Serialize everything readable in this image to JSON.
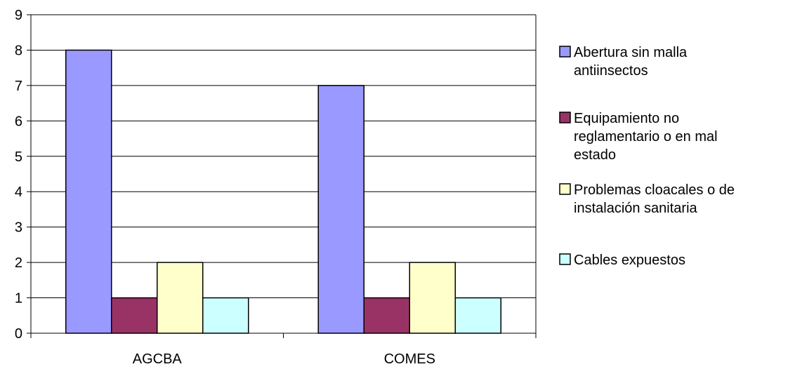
{
  "chart_data": {
    "type": "bar",
    "title": "",
    "xlabel": "",
    "ylabel": "",
    "categories": [
      "AGCBA",
      "COMES"
    ],
    "ylim": [
      0,
      9
    ],
    "yticks": [
      "0",
      "1",
      "2",
      "3",
      "4",
      "5",
      "6",
      "7",
      "8",
      "9"
    ],
    "grid": true,
    "legend_position": "right",
    "series": [
      {
        "name": "Abertura sin malla antiinsectos",
        "legend_lines": [
          "Abertura sin malla",
          "antiinsectos"
        ],
        "color": "#9999ff",
        "values": [
          8,
          7
        ]
      },
      {
        "name": "Equipamiento no reglamentario o en mal estado",
        "legend_lines": [
          "Equipamiento no",
          "reglamentario o en mal",
          "estado"
        ],
        "color": "#993366",
        "values": [
          1,
          1
        ]
      },
      {
        "name": "Problemas cloacales o de instalación sanitaria",
        "legend_lines": [
          "Problemas cloacales o de",
          "instalación sanitaria"
        ],
        "color": "#ffffcc",
        "values": [
          2,
          2
        ]
      },
      {
        "name": "Cables expuestos",
        "legend_lines": [
          "Cables expuestos"
        ],
        "color": "#ccffff",
        "values": [
          1,
          1
        ]
      }
    ]
  }
}
